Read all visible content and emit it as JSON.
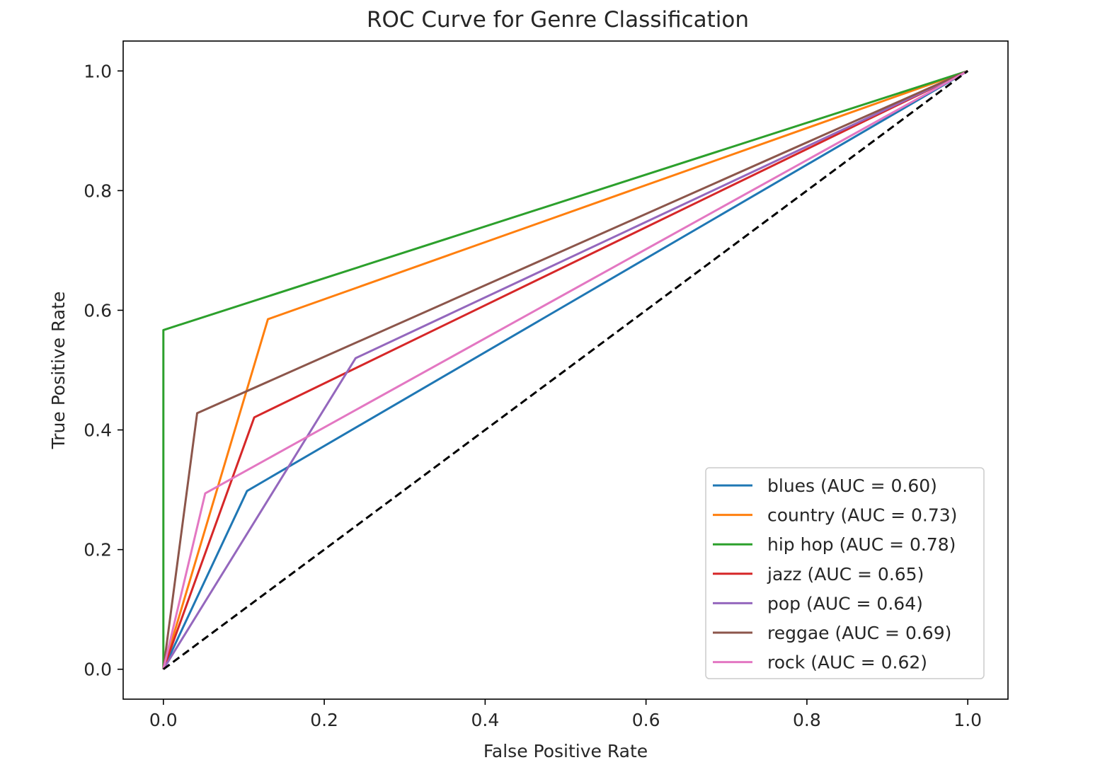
{
  "chart_data": {
    "type": "line",
    "title": "ROC Curve for Genre Classification",
    "xlabel": "False Positive Rate",
    "ylabel": "True Positive Rate",
    "xlim": [
      -0.05,
      1.05
    ],
    "ylim": [
      -0.05,
      1.05
    ],
    "x_ticks": [
      "0.0",
      "0.2",
      "0.4",
      "0.6",
      "0.8",
      "1.0"
    ],
    "y_ticks": [
      "0.0",
      "0.2",
      "0.4",
      "0.6",
      "0.8",
      "1.0"
    ],
    "grid": false,
    "legend_position": "lower right",
    "series": [
      {
        "name": "blues (AUC = 0.60)",
        "color": "#1f77b4",
        "x": [
          0,
          0.104,
          1
        ],
        "y": [
          0,
          0.298,
          1
        ]
      },
      {
        "name": "country (AUC = 0.73)",
        "color": "#ff7f0e",
        "x": [
          0,
          0.13,
          1
        ],
        "y": [
          0,
          0.585,
          1
        ]
      },
      {
        "name": "hip hop (AUC = 0.78)",
        "color": "#2ca02c",
        "x": [
          0,
          0,
          1
        ],
        "y": [
          0,
          0.567,
          1
        ]
      },
      {
        "name": "jazz (AUC = 0.65)",
        "color": "#d62728",
        "x": [
          0,
          0.113,
          1
        ],
        "y": [
          0,
          0.421,
          1
        ]
      },
      {
        "name": "pop (AUC = 0.64)",
        "color": "#9467bd",
        "x": [
          0,
          0.239,
          1
        ],
        "y": [
          0,
          0.52,
          1
        ]
      },
      {
        "name": "reggae (AUC = 0.69)",
        "color": "#8c564b",
        "x": [
          0,
          0.042,
          1
        ],
        "y": [
          0,
          0.428,
          1
        ]
      },
      {
        "name": "rock (AUC = 0.62)",
        "color": "#e377c2",
        "x": [
          0,
          0.052,
          1
        ],
        "y": [
          0,
          0.294,
          1
        ]
      }
    ],
    "reference_line": {
      "x": [
        0,
        1
      ],
      "y": [
        0,
        1
      ],
      "color": "#000000",
      "style": "dashed"
    }
  }
}
